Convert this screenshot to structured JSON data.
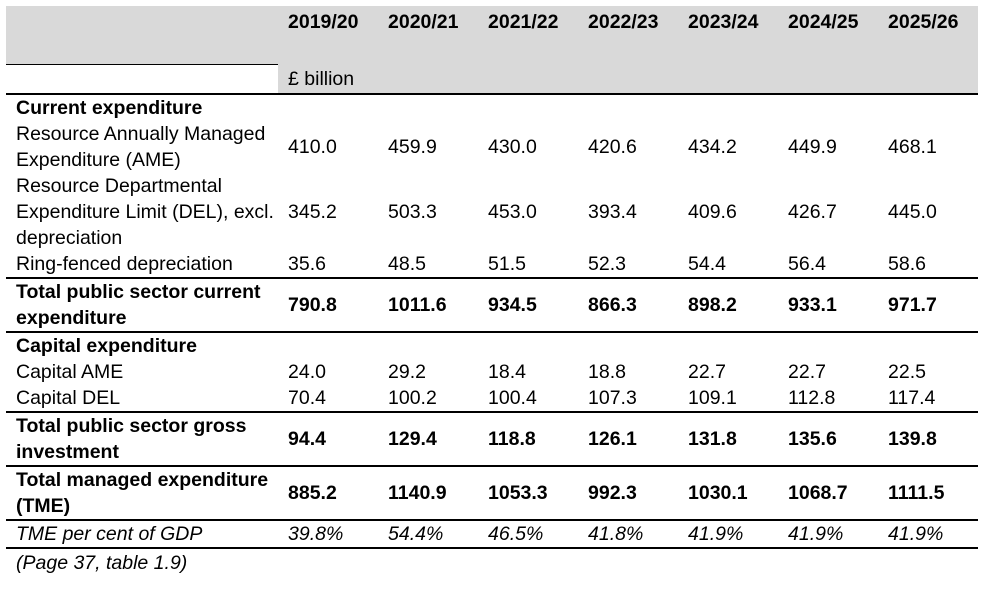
{
  "table": {
    "years": [
      "2019/20",
      "2020/21",
      "2021/22",
      "2022/23",
      "2023/24",
      "2024/25",
      "2025/26"
    ],
    "units": "£ billion",
    "sections": {
      "current_title": "Current expenditure",
      "capital_title": "Capital expenditure"
    },
    "rows": {
      "resource_ame": {
        "label": "Resource Annually Managed Expenditure (AME)",
        "values": [
          "410.0",
          "459.9",
          "430.0",
          "420.6",
          "434.2",
          "449.9",
          "468.1"
        ]
      },
      "resource_del": {
        "label": "Resource Departmental Expenditure Limit (DEL), excl. depreciation",
        "values": [
          "345.2",
          "503.3",
          "453.0",
          "393.4",
          "409.6",
          "426.7",
          "445.0"
        ]
      },
      "ringfenced": {
        "label": "Ring-fenced depreciation",
        "values": [
          "35.6",
          "48.5",
          "51.5",
          "52.3",
          "54.4",
          "56.4",
          "58.6"
        ]
      },
      "total_current": {
        "label": "Total public sector current expenditure",
        "values": [
          "790.8",
          "1011.6",
          "934.5",
          "866.3",
          "898.2",
          "933.1",
          "971.7"
        ]
      },
      "capital_ame": {
        "label": "Capital AME",
        "values": [
          "24.0",
          "29.2",
          "18.4",
          "18.8",
          "22.7",
          "22.7",
          "22.5"
        ]
      },
      "capital_del": {
        "label": "Capital DEL",
        "values": [
          "70.4",
          "100.2",
          "100.4",
          "107.3",
          "109.1",
          "112.8",
          "117.4"
        ]
      },
      "total_investment": {
        "label": "Total public sector gross investment",
        "values": [
          "94.4",
          "129.4",
          "118.8",
          "126.1",
          "131.8",
          "135.6",
          "139.8"
        ]
      },
      "tme": {
        "label": "Total managed expenditure (TME)",
        "values": [
          "885.2",
          "1140.9",
          "1053.3",
          "992.3",
          "1030.1",
          "1068.7",
          "1111.5"
        ]
      },
      "tme_gdp": {
        "label": "TME per cent of GDP",
        "values": [
          "39.8%",
          "54.4%",
          "46.5%",
          "41.8%",
          "41.9%",
          "41.9%",
          "41.9%"
        ]
      }
    },
    "source_note": "(Page 37, table 1.9)"
  }
}
